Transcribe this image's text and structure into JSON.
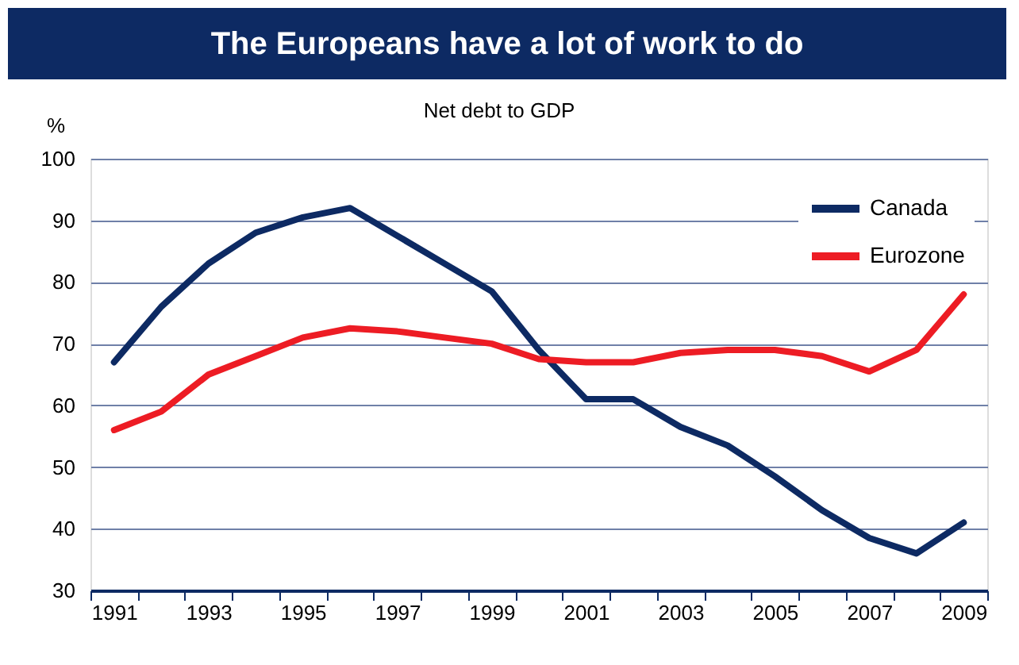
{
  "chart_data": {
    "type": "line",
    "title": "The Europeans have a lot of work to do",
    "subtitle": "Net debt to GDP",
    "ylabel": "%",
    "categories": [
      "1991",
      null,
      "1993",
      null,
      "1995",
      null,
      "1997",
      null,
      "1999",
      null,
      "2001",
      null,
      "2003",
      null,
      "2005",
      null,
      "2007",
      null,
      "2009"
    ],
    "series": [
      {
        "name": "Canada",
        "color": "#0d2a63",
        "values": [
          67,
          76,
          83,
          88,
          90.5,
          92,
          87.5,
          83,
          78.5,
          69,
          61,
          61,
          56.5,
          53.5,
          48.5,
          43,
          38.5,
          36,
          41
        ]
      },
      {
        "name": "Eurozone",
        "color": "#ed1c24",
        "values": [
          56,
          59,
          65,
          68,
          71,
          72.5,
          72,
          71,
          70,
          67.5,
          67,
          67,
          68.5,
          69,
          69,
          68,
          65.5,
          69,
          78
        ]
      }
    ],
    "ylim": [
      30,
      100
    ],
    "yticks": [
      30,
      40,
      50,
      60,
      70,
      80,
      90,
      100
    ],
    "grid": "y",
    "legend": "top right",
    "line_style": "solid",
    "marker": "none"
  }
}
